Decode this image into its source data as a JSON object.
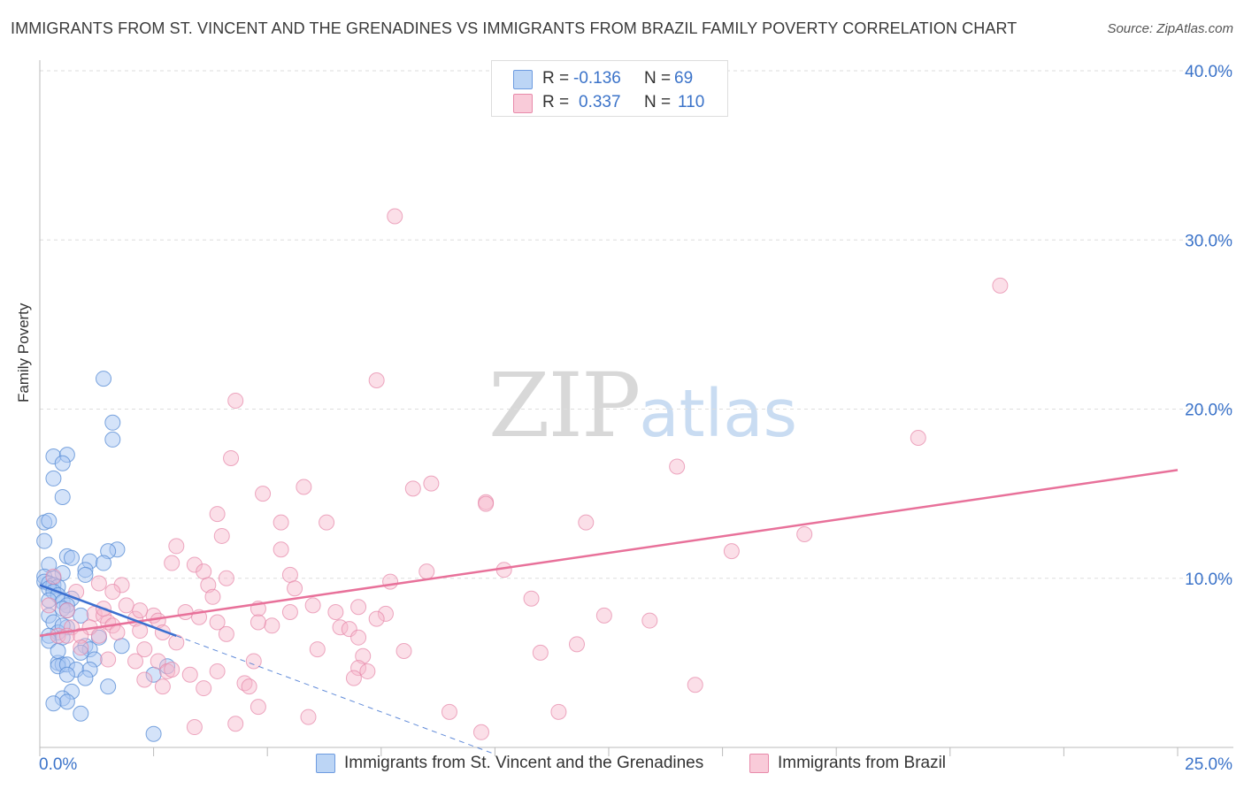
{
  "header": {
    "title": "IMMIGRANTS FROM ST. VINCENT AND THE GRENADINES VS IMMIGRANTS FROM BRAZIL FAMILY POVERTY CORRELATION CHART",
    "source": "Source: ZipAtlas.com"
  },
  "watermark": {
    "zip": "ZIP",
    "atlas": "atlas"
  },
  "legend": {
    "r_label": "R =",
    "n_label": "N =",
    "series1": {
      "r": "-0.136",
      "n": "69"
    },
    "series2": {
      "r": "0.337",
      "n": "110"
    }
  },
  "colors": {
    "blue_fill": "#a9c8f3",
    "blue_stroke": "#5b8ed6",
    "blue_line": "#3b6fd0",
    "pink_fill": "#f6b9cc",
    "pink_stroke": "#e585a6",
    "pink_line": "#e8719a",
    "tick_text": "#3b73c9",
    "grid": "#dddddd"
  },
  "chart_data": {
    "type": "scatter",
    "title": "IMMIGRANTS FROM ST. VINCENT AND THE GRENADINES VS IMMIGRANTS FROM BRAZIL FAMILY POVERTY CORRELATION CHART",
    "xlabel": "",
    "ylabel": "Family Poverty",
    "xlim": [
      0,
      25
    ],
    "ylim": [
      0,
      40
    ],
    "x_tick_labels": [
      {
        "value": 0,
        "label": "0.0%"
      },
      {
        "value": 25,
        "label": "25.0%"
      }
    ],
    "y_tick_labels": [
      {
        "value": 10,
        "label": "10.0%"
      },
      {
        "value": 20,
        "label": "20.0%"
      },
      {
        "value": 30,
        "label": "30.0%"
      },
      {
        "value": 40,
        "label": "40.0%"
      }
    ],
    "series": [
      {
        "name": "Immigrants from St. Vincent and the Grenadines",
        "color": "#a9c8f3",
        "r": -0.136,
        "n": 69,
        "trend": {
          "x": [
            0,
            3.0
          ],
          "y": [
            9.6,
            6.6
          ],
          "dashed_extension": {
            "x": [
              3.0,
              10.0
            ],
            "y": [
              6.6,
              -0.4
            ]
          }
        },
        "points": [
          [
            1.4,
            21.8
          ],
          [
            1.6,
            19.2
          ],
          [
            1.6,
            18.2
          ],
          [
            0.3,
            17.2
          ],
          [
            0.6,
            17.3
          ],
          [
            0.5,
            16.8
          ],
          [
            0.3,
            15.9
          ],
          [
            0.5,
            14.8
          ],
          [
            0.1,
            13.3
          ],
          [
            0.2,
            13.4
          ],
          [
            0.1,
            12.2
          ],
          [
            1.7,
            11.7
          ],
          [
            1.5,
            11.6
          ],
          [
            0.6,
            11.3
          ],
          [
            0.7,
            11.2
          ],
          [
            1.1,
            11.0
          ],
          [
            1.4,
            10.9
          ],
          [
            0.2,
            10.8
          ],
          [
            1.0,
            10.5
          ],
          [
            0.5,
            10.3
          ],
          [
            1.0,
            10.2
          ],
          [
            0.1,
            10.1
          ],
          [
            0.3,
            10.0
          ],
          [
            0.1,
            9.8
          ],
          [
            0.2,
            9.7
          ],
          [
            0.3,
            9.6
          ],
          [
            0.4,
            9.5
          ],
          [
            0.2,
            9.4
          ],
          [
            0.3,
            9.2
          ],
          [
            0.4,
            9.0
          ],
          [
            0.2,
            8.7
          ],
          [
            0.5,
            8.6
          ],
          [
            0.7,
            8.8
          ],
          [
            0.6,
            8.4
          ],
          [
            0.5,
            8.2
          ],
          [
            0.6,
            8.1
          ],
          [
            0.2,
            7.8
          ],
          [
            0.3,
            7.4
          ],
          [
            0.6,
            7.1
          ],
          [
            0.4,
            6.8
          ],
          [
            0.2,
            6.6
          ],
          [
            0.5,
            6.5
          ],
          [
            1.3,
            6.5
          ],
          [
            0.2,
            6.3
          ],
          [
            1.0,
            6.0
          ],
          [
            1.1,
            5.8
          ],
          [
            0.9,
            5.6
          ],
          [
            1.2,
            5.2
          ],
          [
            0.4,
            5.0
          ],
          [
            0.5,
            4.9
          ],
          [
            0.4,
            4.8
          ],
          [
            0.6,
            4.9
          ],
          [
            0.8,
            4.6
          ],
          [
            1.1,
            4.6
          ],
          [
            0.6,
            4.3
          ],
          [
            1.0,
            4.1
          ],
          [
            2.8,
            4.8
          ],
          [
            2.5,
            4.3
          ],
          [
            1.5,
            3.6
          ],
          [
            0.7,
            3.3
          ],
          [
            0.5,
            2.9
          ],
          [
            0.6,
            2.7
          ],
          [
            0.3,
            2.6
          ],
          [
            0.9,
            2.0
          ],
          [
            2.5,
            0.8
          ],
          [
            0.5,
            7.2
          ],
          [
            0.9,
            7.8
          ],
          [
            1.8,
            6.0
          ],
          [
            0.4,
            5.7
          ]
        ]
      },
      {
        "name": "Immigrants from Brazil",
        "color": "#f6b9cc",
        "r": 0.337,
        "n": 110,
        "trend": {
          "x": [
            0,
            25
          ],
          "y": [
            6.6,
            16.4
          ]
        },
        "points": [
          [
            7.8,
            31.4
          ],
          [
            21.1,
            27.3
          ],
          [
            7.4,
            21.7
          ],
          [
            4.3,
            20.5
          ],
          [
            19.3,
            18.3
          ],
          [
            4.2,
            17.1
          ],
          [
            14.0,
            16.6
          ],
          [
            8.6,
            15.6
          ],
          [
            5.8,
            15.4
          ],
          [
            8.2,
            15.3
          ],
          [
            4.9,
            15.0
          ],
          [
            9.8,
            14.5
          ],
          [
            9.8,
            14.4
          ],
          [
            3.9,
            13.8
          ],
          [
            5.3,
            13.3
          ],
          [
            6.3,
            13.3
          ],
          [
            12.0,
            13.3
          ],
          [
            4.0,
            12.5
          ],
          [
            16.8,
            12.6
          ],
          [
            3.0,
            11.9
          ],
          [
            5.3,
            11.7
          ],
          [
            15.2,
            11.6
          ],
          [
            2.9,
            10.9
          ],
          [
            3.4,
            10.8
          ],
          [
            3.6,
            10.4
          ],
          [
            8.5,
            10.4
          ],
          [
            10.2,
            10.5
          ],
          [
            5.5,
            10.2
          ],
          [
            4.1,
            10.0
          ],
          [
            7.7,
            9.8
          ],
          [
            1.3,
            9.7
          ],
          [
            1.8,
            9.6
          ],
          [
            3.7,
            9.6
          ],
          [
            0.8,
            9.2
          ],
          [
            1.6,
            9.2
          ],
          [
            3.8,
            8.9
          ],
          [
            10.8,
            8.8
          ],
          [
            0.2,
            8.4
          ],
          [
            1.9,
            8.4
          ],
          [
            4.8,
            8.2
          ],
          [
            6.0,
            8.4
          ],
          [
            7.0,
            8.3
          ],
          [
            6.5,
            8.0
          ],
          [
            0.6,
            8.1
          ],
          [
            1.2,
            7.9
          ],
          [
            1.4,
            7.8
          ],
          [
            2.5,
            7.8
          ],
          [
            3.2,
            8.0
          ],
          [
            7.6,
            7.9
          ],
          [
            5.5,
            8.0
          ],
          [
            12.4,
            7.8
          ],
          [
            2.1,
            7.6
          ],
          [
            3.5,
            7.7
          ],
          [
            2.6,
            7.5
          ],
          [
            7.4,
            7.6
          ],
          [
            13.4,
            7.5
          ],
          [
            1.5,
            7.4
          ],
          [
            0.7,
            7.1
          ],
          [
            1.1,
            7.1
          ],
          [
            1.6,
            7.2
          ],
          [
            5.1,
            7.2
          ],
          [
            6.6,
            7.1
          ],
          [
            6.8,
            7.0
          ],
          [
            2.2,
            6.9
          ],
          [
            2.7,
            6.8
          ],
          [
            0.4,
            6.6
          ],
          [
            0.6,
            6.6
          ],
          [
            0.9,
            6.6
          ],
          [
            1.3,
            6.6
          ],
          [
            4.1,
            6.7
          ],
          [
            7.0,
            6.5
          ],
          [
            3.0,
            6.2
          ],
          [
            11.8,
            6.1
          ],
          [
            0.9,
            5.9
          ],
          [
            2.3,
            5.8
          ],
          [
            6.1,
            5.8
          ],
          [
            8.0,
            5.7
          ],
          [
            11.0,
            5.6
          ],
          [
            7.1,
            5.4
          ],
          [
            4.7,
            5.1
          ],
          [
            2.6,
            5.1
          ],
          [
            2.1,
            5.1
          ],
          [
            1.5,
            5.2
          ],
          [
            7.0,
            4.7
          ],
          [
            7.2,
            4.5
          ],
          [
            2.8,
            4.5
          ],
          [
            2.9,
            4.6
          ],
          [
            3.9,
            4.5
          ],
          [
            3.3,
            4.3
          ],
          [
            6.9,
            4.1
          ],
          [
            2.3,
            4.0
          ],
          [
            4.5,
            3.8
          ],
          [
            4.6,
            3.6
          ],
          [
            14.4,
            3.7
          ],
          [
            2.7,
            3.6
          ],
          [
            3.6,
            3.5
          ],
          [
            4.8,
            2.4
          ],
          [
            9.0,
            2.1
          ],
          [
            11.4,
            2.1
          ],
          [
            5.9,
            1.8
          ],
          [
            4.3,
            1.4
          ],
          [
            3.4,
            1.2
          ],
          [
            9.7,
            0.9
          ],
          [
            1.4,
            8.2
          ],
          [
            5.6,
            9.4
          ],
          [
            0.3,
            10.1
          ],
          [
            2.2,
            8.1
          ],
          [
            3.9,
            7.4
          ],
          [
            1.7,
            6.8
          ],
          [
            4.8,
            7.4
          ]
        ]
      }
    ]
  },
  "bottom_legend": {
    "series1_label": "Immigrants from St. Vincent and the Grenadines",
    "series2_label": "Immigrants from Brazil"
  }
}
